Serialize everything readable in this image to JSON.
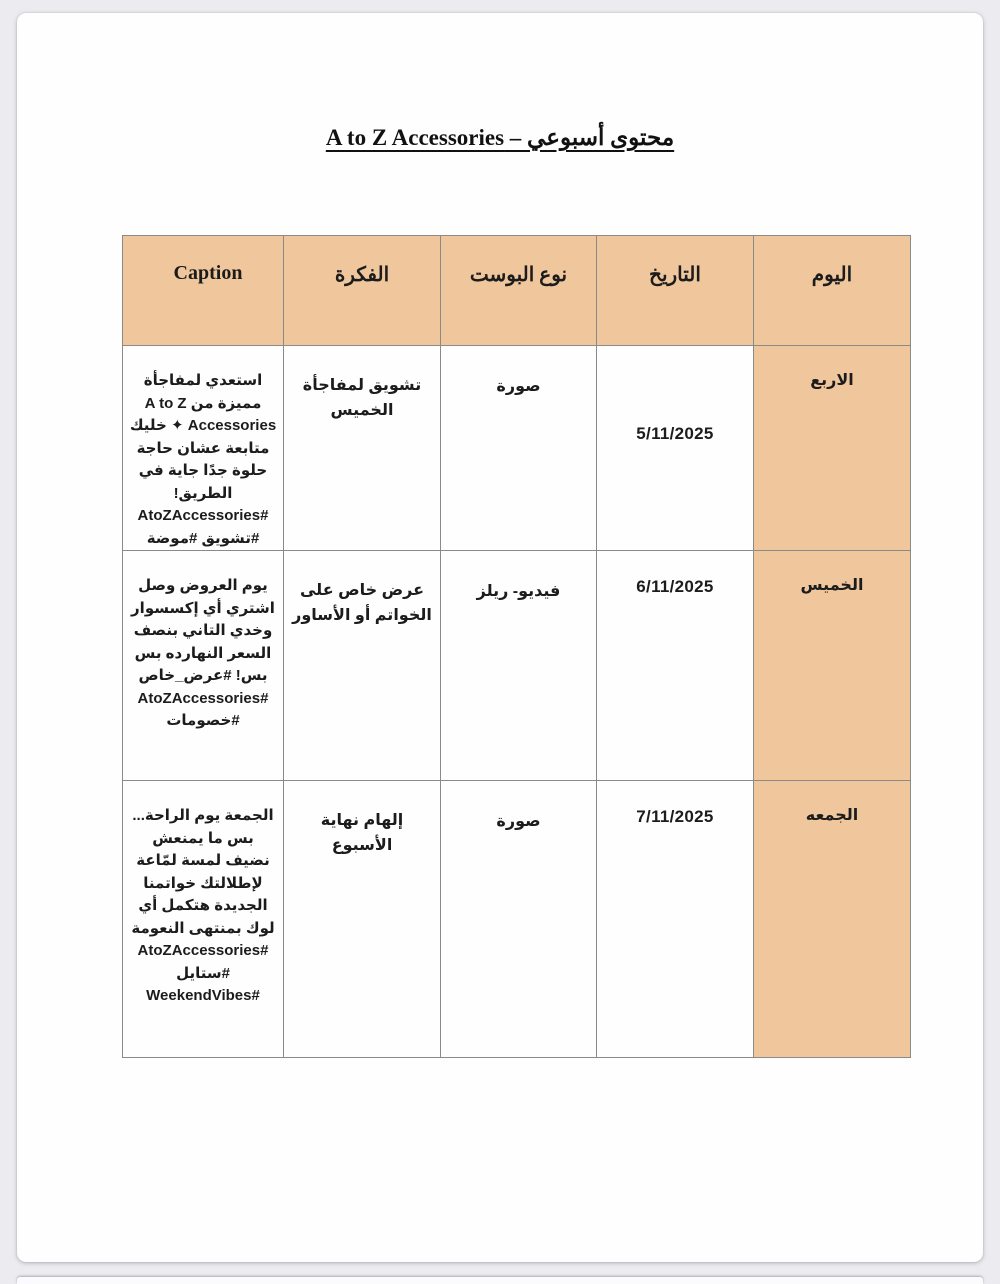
{
  "page": {
    "title": "محتوى أسبوعي – A to Z Accessories"
  },
  "table": {
    "headers": {
      "day": "اليوم",
      "date": "التاريخ",
      "post_type": "نوع البوست",
      "idea": "الفكرة",
      "caption": "Caption"
    },
    "rows": [
      {
        "day": "الاربع",
        "date": "5/11/2025",
        "post_type": "صورة",
        "idea": "تشويق لمفاجأة الخميس",
        "caption": "استعدي لمفاجأة مميزة من A to Z Accessories ✦ خليك متابعة عشان حاجة حلوة جدًا جاية في الطريق!\n#AtoZAccessories\n#تشويق #موضة"
      },
      {
        "day": "الخميس",
        "date": "6/11/2025",
        "post_type": "فيديو- ريلز",
        "idea": "عرض خاص على الخواتم أو الأساور",
        "caption": "يوم العروض وصل اشتري أي إكسسوار وخدي التاني بنصف السعر النهارده بس بس! #عرض_خاص\n#AtoZAccessories\n#خصومات"
      },
      {
        "day": "الجمعه",
        "date": "7/11/2025",
        "post_type": "صورة",
        "idea": "إلهام نهاية الأسبوع",
        "caption": "الجمعة يوم الراحة... بس ما يمنعش نضيف لمسة لمّاعة لإطلالتك خواتمنا الجديدة هتكمل أي لوك بمنتهى النعومة\n#AtoZAccessories\n#ستايل\n#WeekendVibes"
      }
    ]
  },
  "colors": {
    "header_bg": "#f0c79c",
    "table_border": "#8a8a8a",
    "page_bg": "#fefefe",
    "backdrop": "#ebebf0"
  }
}
